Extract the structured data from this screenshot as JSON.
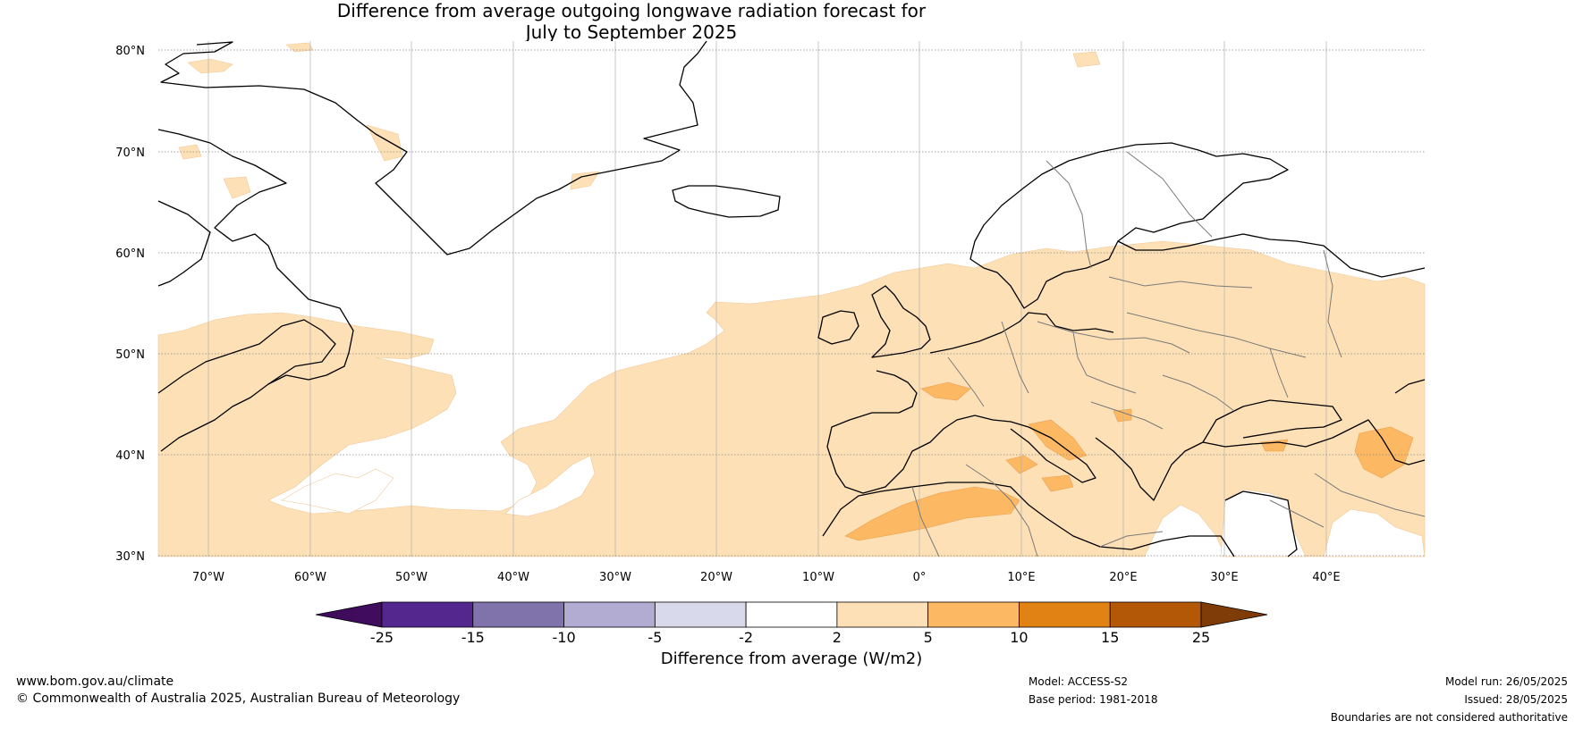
{
  "title_line1": "Difference from average outgoing longwave radiation forecast for",
  "title_line2": "July to September 2025",
  "lat_labels": [
    "80°N",
    "70°N",
    "60°N",
    "50°N",
    "40°N",
    "30°N"
  ],
  "lon_labels": [
    "70°W",
    "60°W",
    "50°W",
    "40°W",
    "30°W",
    "20°W",
    "10°W",
    "0°",
    "10°E",
    "20°E",
    "30°E",
    "40°E"
  ],
  "colorbar": {
    "ticks": [
      "-25",
      "-15",
      "-10",
      "-5",
      "-2",
      "2",
      "5",
      "10",
      "15",
      "25"
    ],
    "colors": [
      "#3f0c5e",
      "#54278f",
      "#8073ac",
      "#b2abd2",
      "#d8daeb",
      "#ffffff",
      "#fde0b6",
      "#fdb863",
      "#e08214",
      "#b35806",
      "#7f3b08"
    ],
    "label": "Difference from average (W/m2)"
  },
  "footer": {
    "url": "www.bom.gov.au/climate",
    "copyright": "© Commonwealth of Australia 2025, Australian Bureau of Meteorology",
    "model": "Model: ACCESS-S2",
    "base_period": "Base period: 1981-2018",
    "model_run": "Model run: 26/05/2025",
    "issued": "Issued: 28/05/2025",
    "boundaries": "Boundaries are not considered authoritative"
  }
}
